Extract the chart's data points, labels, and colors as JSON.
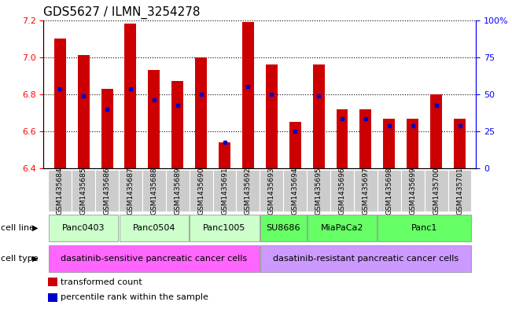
{
  "title": "GDS5627 / ILMN_3254278",
  "samples": [
    "GSM1435684",
    "GSM1435685",
    "GSM1435686",
    "GSM1435687",
    "GSM1435688",
    "GSM1435689",
    "GSM1435690",
    "GSM1435691",
    "GSM1435692",
    "GSM1435693",
    "GSM1435694",
    "GSM1435695",
    "GSM1435696",
    "GSM1435697",
    "GSM1435698",
    "GSM1435699",
    "GSM1435700",
    "GSM1435701"
  ],
  "bar_values": [
    7.1,
    7.01,
    6.83,
    7.18,
    6.93,
    6.87,
    7.0,
    6.54,
    7.19,
    6.96,
    6.65,
    6.96,
    6.72,
    6.72,
    6.67,
    6.67,
    6.8,
    6.67
  ],
  "percentile_values": [
    6.83,
    6.79,
    6.72,
    6.83,
    6.77,
    6.74,
    6.8,
    6.54,
    6.84,
    6.8,
    6.6,
    6.79,
    6.67,
    6.67,
    6.63,
    6.63,
    6.74,
    6.63
  ],
  "ymin": 6.4,
  "ymax": 7.2,
  "yticks_left": [
    6.4,
    6.6,
    6.8,
    7.0,
    7.2
  ],
  "yticks_right": [
    0,
    25,
    50,
    75,
    100
  ],
  "bar_color": "#cc0000",
  "percentile_color": "#0000cc",
  "cell_lines": [
    {
      "label": "Panc0403",
      "start": 0,
      "end": 3,
      "color": "#ccffcc"
    },
    {
      "label": "Panc0504",
      "start": 3,
      "end": 6,
      "color": "#ccffcc"
    },
    {
      "label": "Panc1005",
      "start": 6,
      "end": 9,
      "color": "#ccffcc"
    },
    {
      "label": "SU8686",
      "start": 9,
      "end": 11,
      "color": "#66ff66"
    },
    {
      "label": "MiaPaCa2",
      "start": 11,
      "end": 14,
      "color": "#66ff66"
    },
    {
      "label": "Panc1",
      "start": 14,
      "end": 18,
      "color": "#66ff66"
    }
  ],
  "cell_types": [
    {
      "label": "dasatinib-sensitive pancreatic cancer cells",
      "start": 0,
      "end": 9,
      "color": "#ff66ff"
    },
    {
      "label": "dasatinib-resistant pancreatic cancer cells",
      "start": 9,
      "end": 18,
      "color": "#cc99ff"
    }
  ],
  "legend_items": [
    {
      "label": "transformed count",
      "color": "#cc0000"
    },
    {
      "label": "percentile rank within the sample",
      "color": "#0000cc"
    }
  ],
  "title_fontsize": 11,
  "tick_label_fontsize": 6.5,
  "bar_width": 0.5,
  "sample_box_color": "#cccccc"
}
